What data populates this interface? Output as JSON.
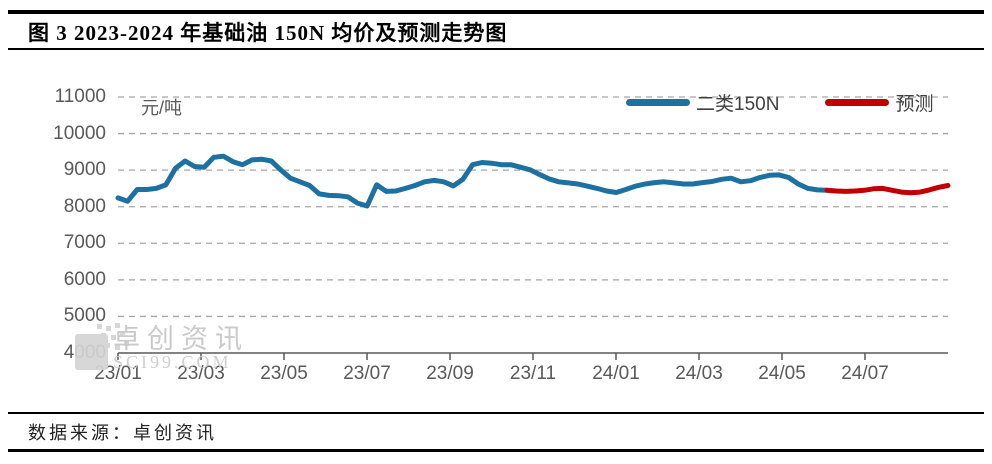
{
  "title": "图 3 2023-2024 年基础油 150N 均价及预测走势图",
  "footer": {
    "source": "数据来源：卓创资讯"
  },
  "watermark": {
    "name": "卓创资讯",
    "domain": "SCI99.COM",
    "icon": "qr-block-icon"
  },
  "chart_data": {
    "type": "line",
    "title": "2023-2024 年基础油150N均价及预测走势",
    "unit_label": "元/吨",
    "grid": "dashed-horizontal",
    "legend_position": "top-right-inside",
    "colors": {
      "axis_text": "#595959",
      "gridline": "#a6a6a6",
      "axis_line": "#595959"
    },
    "y_axis": {
      "min": 4000,
      "max": 11000,
      "step": 1000,
      "ticks": [
        11000,
        10000,
        9000,
        8000,
        7000,
        6000,
        5000,
        4000
      ]
    },
    "x_axis": {
      "range_months": 20,
      "label_every_months": 2,
      "tick_labels": [
        "23/01",
        "23/03",
        "23/05",
        "23/07",
        "23/09",
        "23/11",
        "24/01",
        "24/03",
        "24/05",
        "24/07"
      ]
    },
    "series": [
      {
        "name": "二类150N",
        "color": "#1d71a0",
        "frequency": "weekly",
        "x_start": "23/01",
        "x_end": "24/06",
        "values": [
          8240,
          8150,
          8470,
          8470,
          8500,
          8600,
          9050,
          9250,
          9100,
          9080,
          9350,
          9380,
          9230,
          9150,
          9280,
          9300,
          9250,
          9000,
          8780,
          8680,
          8580,
          8350,
          8310,
          8300,
          8270,
          8100,
          8020,
          8600,
          8420,
          8430,
          8500,
          8580,
          8680,
          8720,
          8680,
          8570,
          8750,
          9150,
          9210,
          9190,
          9150,
          9150,
          9080,
          9010,
          8880,
          8760,
          8680,
          8650,
          8620,
          8560,
          8500,
          8430,
          8390,
          8470,
          8560,
          8620,
          8660,
          8680,
          8650,
          8620,
          8620,
          8660,
          8690,
          8750,
          8780,
          8680,
          8710,
          8800,
          8860,
          8870,
          8800,
          8620,
          8500,
          8460,
          8450
        ]
      },
      {
        "name": "预测",
        "color": "#c00000",
        "frequency": "weekly",
        "x_start": "24/06",
        "x_end": "24/09",
        "values": [
          8450,
          8430,
          8420,
          8430,
          8450,
          8490,
          8500,
          8450,
          8400,
          8380,
          8400,
          8460,
          8530,
          8580
        ]
      }
    ]
  }
}
